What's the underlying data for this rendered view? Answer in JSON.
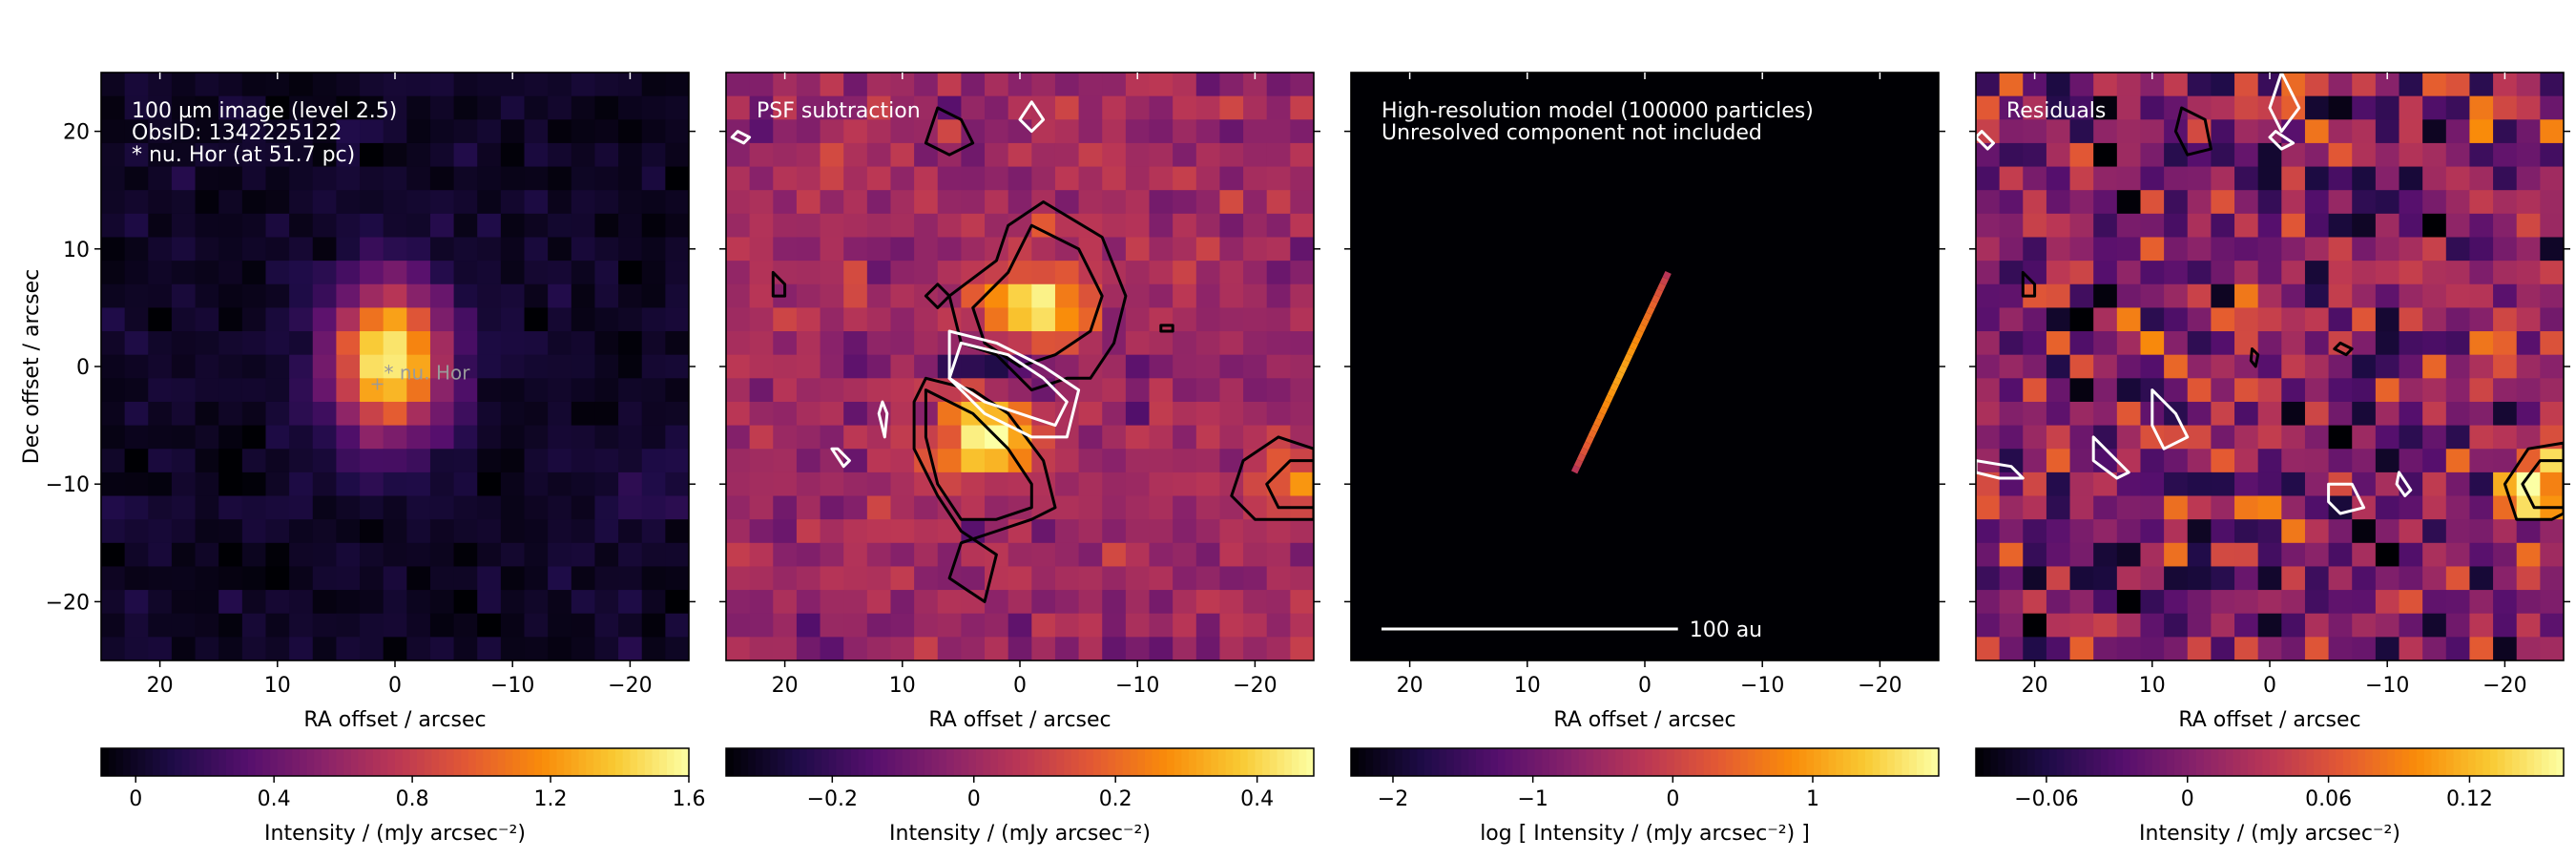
{
  "colors": {
    "colormap": "inferno",
    "background": "#ffffff",
    "contour_positive": "#000000",
    "contour_negative": "#ffffff",
    "annotation_text": "#ffffff",
    "source_label": "#9a9a9a"
  },
  "chart_data": [
    {
      "type": "heatmap",
      "panel": "observation",
      "annotations": [
        "100 µm image (level 2.5)",
        "ObsID: 1342225122",
        "* nu. Hor (at 51.7 pc)"
      ],
      "source_marker": {
        "label": "* nu. Hor",
        "x": 1.5,
        "y": -1.5
      },
      "xlabel": "RA offset / arcsec",
      "ylabel": "Dec offset / arcsec",
      "xlim": [
        25,
        -25
      ],
      "ylim": [
        -25,
        25
      ],
      "xticks": [
        20,
        10,
        0,
        -10,
        -20
      ],
      "xtick_labels": [
        "20",
        "10",
        "0",
        "−10",
        "−20"
      ],
      "yticks": [
        20,
        10,
        0,
        -10,
        -20
      ],
      "ytick_labels": [
        "20",
        "10",
        "0",
        "−10",
        "−20"
      ],
      "colorbar": {
        "label": "Intensity / (mJy arcsec⁻²)",
        "range": [
          -0.1,
          1.6
        ],
        "ticks": [
          0,
          0.4,
          0.8,
          1.2,
          1.6
        ],
        "tick_labels": [
          "0",
          "0.4",
          "0.8",
          "1.2",
          "1.6"
        ]
      },
      "image_model": {
        "grid": 25,
        "pixel_arcsec": 2,
        "noise_rms": 0.05,
        "sources": [
          {
            "x": 0.5,
            "y": 0.5,
            "peak": 1.6,
            "sigma_x": 3.5,
            "sigma_y": 4.5
          },
          {
            "x": -22,
            "y": -10,
            "peak": 0.15,
            "sigma_x": 3,
            "sigma_y": 3
          }
        ],
        "seed": 11
      },
      "contours": []
    },
    {
      "type": "heatmap",
      "panel": "psf_subtraction",
      "annotations": [
        "PSF subtraction"
      ],
      "xlabel": "RA offset / arcsec",
      "xlim": [
        25,
        -25
      ],
      "ylim": [
        -25,
        25
      ],
      "xticks": [
        20,
        10,
        0,
        -10,
        -20
      ],
      "xtick_labels": [
        "20",
        "10",
        "0",
        "−10",
        "−20"
      ],
      "yticks": [
        20,
        10,
        0,
        -10,
        -20
      ],
      "colorbar": {
        "label": "Intensity / (mJy arcsec⁻²)",
        "range": [
          -0.35,
          0.48
        ],
        "ticks": [
          -0.2,
          0,
          0.2,
          0.4
        ],
        "tick_labels": [
          "−0.2",
          "0",
          "0.2",
          "0.4"
        ]
      },
      "image_model": {
        "grid": 25,
        "pixel_arcsec": 2,
        "noise_rms": 0.05,
        "sources": [
          {
            "x": -1,
            "y": 5,
            "peak": 0.45,
            "sigma_x": 3,
            "sigma_y": 2.6
          },
          {
            "x": 3,
            "y": -6,
            "peak": 0.48,
            "sigma_x": 3,
            "sigma_y": 2.6
          },
          {
            "x": 1.5,
            "y": 0,
            "peak": -0.33,
            "sigma_x": 3,
            "sigma_y": 1.5
          },
          {
            "x": -23,
            "y": -10,
            "peak": 0.2,
            "sigma_x": 2.5,
            "sigma_y": 2.5
          }
        ],
        "seed": 23
      },
      "contours": [
        {
          "sign": "positive",
          "points": [
            [
              -2,
              14
            ],
            [
              -7,
              11
            ],
            [
              -9,
              6
            ],
            [
              -8,
              2
            ],
            [
              -6,
              -1
            ],
            [
              -4,
              -1
            ],
            [
              -1,
              -2
            ],
            [
              2,
              1
            ],
            [
              5,
              2
            ],
            [
              6,
              6
            ],
            [
              2,
              9
            ],
            [
              1,
              12
            ]
          ]
        },
        {
          "sign": "positive",
          "points": [
            [
              -1,
              12
            ],
            [
              -5,
              10
            ],
            [
              -7,
              6
            ],
            [
              -6,
              3
            ],
            [
              -3,
              1
            ],
            [
              0,
              0
            ],
            [
              3,
              2
            ],
            [
              4,
              5
            ],
            [
              1,
              8
            ]
          ]
        },
        {
          "sign": "positive",
          "points": [
            [
              8,
              -1
            ],
            [
              4,
              -2
            ],
            [
              1,
              -4
            ],
            [
              -2,
              -8
            ],
            [
              -3,
              -12
            ],
            [
              -1,
              -13
            ],
            [
              2,
              -14
            ],
            [
              5,
              -15
            ],
            [
              6,
              -18
            ],
            [
              3,
              -20
            ],
            [
              2,
              -16
            ],
            [
              5,
              -14
            ],
            [
              7,
              -11
            ],
            [
              9,
              -7
            ],
            [
              9,
              -3
            ]
          ]
        },
        {
          "sign": "positive",
          "points": [
            [
              8,
              -2
            ],
            [
              4,
              -4
            ],
            [
              1,
              -7
            ],
            [
              -1,
              -10
            ],
            [
              -1,
              -12
            ],
            [
              2,
              -13
            ],
            [
              5,
              -13
            ],
            [
              7,
              -10
            ],
            [
              8,
              -6
            ]
          ]
        },
        {
          "sign": "positive",
          "points": [
            [
              -25,
              -7
            ],
            [
              -22,
              -6
            ],
            [
              -19,
              -8
            ],
            [
              -18,
              -11
            ],
            [
              -20,
              -13
            ],
            [
              -25,
              -13
            ]
          ]
        },
        {
          "sign": "positive",
          "points": [
            [
              -25,
              -8
            ],
            [
              -23,
              -8
            ],
            [
              -21,
              -10
            ],
            [
              -22,
              -12
            ],
            [
              -25,
              -12
            ]
          ]
        },
        {
          "sign": "positive",
          "points": [
            [
              7,
              22
            ],
            [
              5,
              21
            ],
            [
              4,
              19
            ],
            [
              6,
              18
            ],
            [
              8,
              19
            ]
          ]
        },
        {
          "sign": "positive",
          "points": [
            [
              21,
              8
            ],
            [
              20,
              7
            ],
            [
              20,
              6
            ],
            [
              21,
              6
            ]
          ]
        },
        {
          "sign": "positive",
          "points": [
            [
              7,
              7
            ],
            [
              6,
              6
            ],
            [
              7,
              5
            ],
            [
              8,
              6
            ]
          ]
        },
        {
          "sign": "positive",
          "points": [
            [
              -12,
              3.5
            ],
            [
              -13,
              3.5
            ],
            [
              -13,
              3
            ],
            [
              -12,
              3
            ]
          ]
        },
        {
          "sign": "negative",
          "points": [
            [
              5,
              2
            ],
            [
              1,
              1
            ],
            [
              -2,
              -1
            ],
            [
              -4,
              -3
            ],
            [
              -3,
              -5
            ],
            [
              0,
              -4
            ],
            [
              3,
              -3
            ],
            [
              6,
              -1
            ]
          ]
        },
        {
          "sign": "negative",
          "points": [
            [
              6,
              3
            ],
            [
              2,
              2
            ],
            [
              -2,
              0
            ],
            [
              -5,
              -2
            ],
            [
              -4,
              -6
            ],
            [
              -1,
              -6
            ],
            [
              3,
              -4
            ],
            [
              6,
              -1
            ]
          ]
        },
        {
          "sign": "negative",
          "points": [
            [
              -1,
              22.5
            ],
            [
              -2,
              21
            ],
            [
              -1,
              20
            ],
            [
              0,
              21
            ]
          ]
        },
        {
          "sign": "negative",
          "points": [
            [
              24,
              20
            ],
            [
              23,
              19.5
            ],
            [
              23.5,
              19
            ],
            [
              24.5,
              19.5
            ]
          ]
        },
        {
          "sign": "negative",
          "points": [
            [
              12,
              -4
            ],
            [
              11.5,
              -6
            ],
            [
              11.3,
              -4
            ],
            [
              11.7,
              -3
            ]
          ]
        },
        {
          "sign": "negative",
          "points": [
            [
              16,
              -7
            ],
            [
              15,
              -8.5
            ],
            [
              14.5,
              -8
            ],
            [
              15.5,
              -7
            ]
          ]
        }
      ]
    },
    {
      "type": "heatmap",
      "panel": "model",
      "annotations": [
        "High-resolution model (100000 particles)",
        "Unresolved component not included"
      ],
      "scale_bar": {
        "label": "100 au",
        "length_arcsec": 1.94
      },
      "xlabel": "RA offset / arcsec",
      "xlim": [
        25,
        -25
      ],
      "ylim": [
        -25,
        25
      ],
      "xticks": [
        20,
        10,
        0,
        -10,
        -20
      ],
      "xtick_labels": [
        "20",
        "10",
        "0",
        "−10",
        "−20"
      ],
      "yticks": [
        20,
        10,
        0,
        -10,
        -20
      ],
      "colorbar": {
        "label": "log [ Intensity / (mJy arcsec⁻²) ]",
        "range": [
          -2.3,
          1.9
        ],
        "ticks": [
          -2,
          -1,
          0,
          1
        ],
        "tick_labels": [
          "−2",
          "−1",
          "0",
          "1"
        ]
      },
      "disk_model": {
        "x_start": 6,
        "y_start": -9,
        "x_end": -2,
        "y_end": 8,
        "peak_log": 1.1,
        "edge_log": -0.5
      },
      "contours": []
    },
    {
      "type": "heatmap",
      "panel": "residuals",
      "annotations": [
        "Residuals"
      ],
      "xlabel": "RA offset / arcsec",
      "xlim": [
        25,
        -25
      ],
      "ylim": [
        -25,
        25
      ],
      "xticks": [
        20,
        10,
        0,
        -10,
        -20
      ],
      "xtick_labels": [
        "20",
        "10",
        "0",
        "−10",
        "−20"
      ],
      "yticks": [
        20,
        10,
        0,
        -10,
        -20
      ],
      "colorbar": {
        "label": "Intensity / (mJy arcsec⁻²)",
        "range": [
          -0.09,
          0.16
        ],
        "ticks": [
          -0.06,
          0,
          0.06,
          0.12
        ],
        "tick_labels": [
          "−0.06",
          "0",
          "0.06",
          "0.12"
        ]
      },
      "image_model": {
        "grid": 25,
        "pixel_arcsec": 2,
        "noise_rms": 0.04,
        "sources": [
          {
            "x": -23,
            "y": -10,
            "peak": 0.16,
            "sigma_x": 2.5,
            "sigma_y": 2.5
          }
        ],
        "seed": 37
      },
      "contours": [
        {
          "sign": "positive",
          "points": [
            [
              -25,
              -6.5
            ],
            [
              -22,
              -7
            ],
            [
              -20,
              -10
            ],
            [
              -21,
              -13
            ],
            [
              -24,
              -13
            ],
            [
              -25,
              -12.5
            ]
          ]
        },
        {
          "sign": "positive",
          "points": [
            [
              -25,
              -8
            ],
            [
              -23,
              -8
            ],
            [
              -21.5,
              -10
            ],
            [
              -22.5,
              -12
            ],
            [
              -25,
              -12
            ]
          ]
        },
        {
          "sign": "positive",
          "points": [
            [
              7.5,
              22
            ],
            [
              5.5,
              21
            ],
            [
              5,
              18.5
            ],
            [
              7,
              18
            ],
            [
              8,
              20
            ]
          ]
        },
        {
          "sign": "positive",
          "points": [
            [
              21,
              8
            ],
            [
              20,
              7
            ],
            [
              20,
              6
            ],
            [
              21,
              6
            ]
          ]
        },
        {
          "sign": "positive",
          "points": [
            [
              1.5,
              1.5
            ],
            [
              1,
              1
            ],
            [
              1.2,
              0
            ],
            [
              1.6,
              0.5
            ]
          ]
        },
        {
          "sign": "positive",
          "points": [
            [
              -6,
              2
            ],
            [
              -7,
              1.5
            ],
            [
              -6.5,
              1
            ],
            [
              -5.5,
              1.5
            ]
          ]
        },
        {
          "sign": "negative",
          "points": [
            [
              -1,
              25
            ],
            [
              -2.5,
              22
            ],
            [
              -1,
              20
            ],
            [
              0,
              22
            ]
          ]
        },
        {
          "sign": "negative",
          "points": [
            [
              10,
              -2
            ],
            [
              8,
              -4
            ],
            [
              7,
              -6
            ],
            [
              9,
              -7
            ],
            [
              10,
              -5
            ]
          ]
        },
        {
          "sign": "negative",
          "points": [
            [
              15,
              -6
            ],
            [
              13,
              -8
            ],
            [
              12,
              -9
            ],
            [
              13,
              -9.5
            ],
            [
              15,
              -8
            ]
          ]
        },
        {
          "sign": "negative",
          "points": [
            [
              -5,
              -10
            ],
            [
              -7,
              -10
            ],
            [
              -8,
              -12
            ],
            [
              -6,
              -12.5
            ],
            [
              -5,
              -11.5
            ]
          ]
        },
        {
          "sign": "negative",
          "points": [
            [
              25,
              -8
            ],
            [
              22,
              -8.5
            ],
            [
              21,
              -9.5
            ],
            [
              23,
              -9.5
            ],
            [
              25,
              -9
            ]
          ]
        },
        {
          "sign": "negative",
          "points": [
            [
              -0.5,
              20
            ],
            [
              -2,
              19
            ],
            [
              -1,
              18.5
            ],
            [
              0,
              19.5
            ]
          ]
        },
        {
          "sign": "negative",
          "points": [
            [
              24.5,
              20
            ],
            [
              23.5,
              19
            ],
            [
              24,
              18.5
            ],
            [
              25,
              19.5
            ]
          ]
        },
        {
          "sign": "negative",
          "points": [
            [
              -11,
              -9
            ],
            [
              -12,
              -10.5
            ],
            [
              -11.5,
              -11
            ],
            [
              -10.8,
              -10
            ]
          ]
        }
      ]
    }
  ]
}
